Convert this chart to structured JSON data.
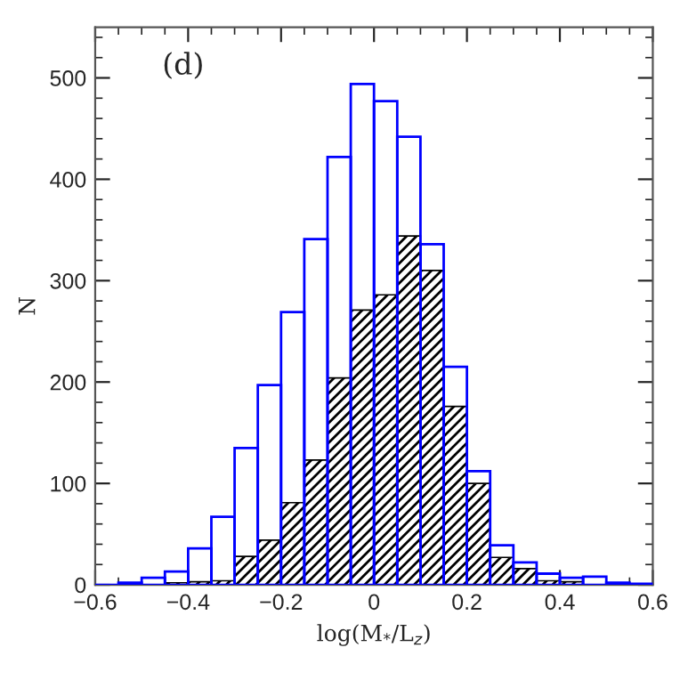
{
  "chart_data": {
    "type": "histogram",
    "xlabel": "log(M$_{*}$/L$_{z}$)",
    "ylabel": "N",
    "annotations": [
      "(d)"
    ],
    "bins": [
      -0.6,
      -0.55,
      -0.5,
      -0.45,
      -0.4,
      -0.35,
      -0.3,
      -0.25,
      -0.2,
      -0.15,
      -0.1,
      -0.05,
      0,
      0.05,
      0.1,
      0.15,
      0.2,
      0.25,
      0.3,
      0.35,
      0.4,
      0.45,
      0.5,
      0.55,
      0.6
    ],
    "series": [
      {
        "color": "#0000ff",
        "values": [
          0,
          2,
          7,
          13,
          36,
          67,
          135,
          197,
          269,
          341,
          422,
          494,
          477,
          442,
          336,
          215,
          112,
          39,
          22,
          11,
          7,
          8,
          2,
          1
        ]
      },
      {
        "color": "#000000",
        "values": [
          0,
          0,
          0,
          2,
          3,
          4,
          28,
          44,
          81,
          123,
          204,
          271,
          286,
          344,
          310,
          176,
          100,
          27,
          16,
          4,
          3,
          0,
          0,
          0
        ]
      }
    ],
    "xlim": [
      -0.6,
      0.6
    ],
    "xticks": [
      {
        "value": -0.6,
        "label": "−0.6"
      },
      {
        "value": -0.4,
        "label": "−0.4"
      },
      {
        "value": -0.2,
        "label": "−0.2"
      },
      0,
      0.2,
      0.4,
      0.6
    ],
    "ylim": [
      0,
      550
    ],
    "yticks": [
      0,
      100,
      200,
      300,
      400,
      500
    ],
    "grid": false,
    "legend": false
  }
}
